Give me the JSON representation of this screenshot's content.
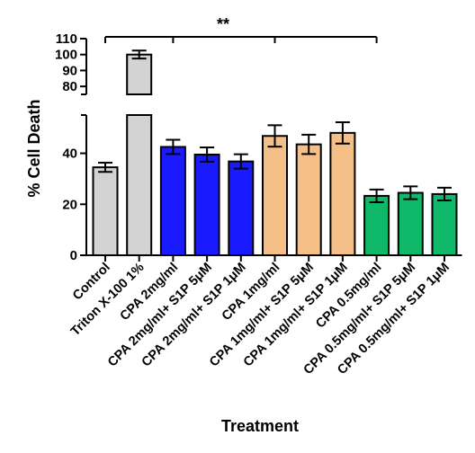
{
  "chart_data": {
    "type": "bar",
    "title": "",
    "xlabel": "Treatment",
    "ylabel": "% Cell Death",
    "ylim_lower": [
      0,
      55
    ],
    "ylim_upper": [
      75,
      110
    ],
    "y_axis_break": true,
    "yticks_lower": [
      "0",
      "20",
      "40"
    ],
    "yticks_upper": [
      "80",
      "90",
      "100",
      "110"
    ],
    "grid": false,
    "categories": [
      "Control",
      "Triton X-100 1%",
      "CPA 2mg/ml",
      "CPA 2mg/ml+ S1P 5μM",
      "CPA 2mg/ml+ S1P 1μM",
      "CPA 1mg/ml",
      "CPA 1mg/ml+ S1P 5μM",
      "CPA 1mg/ml+ S1P 1μM",
      "CPA 0.5mg/ml",
      "CPA 0.5mg/ml+ S1P 5μM",
      "CPA 0.5mg/ml+ S1P 1μM"
    ],
    "values": [
      34.5,
      100,
      42.5,
      39.5,
      36.8,
      46.8,
      43.5,
      48,
      23.3,
      24.5,
      24
    ],
    "errors": [
      1.8,
      2.5,
      2.8,
      2.8,
      2.8,
      4.2,
      3.8,
      4.2,
      2.5,
      2.5,
      2.5
    ],
    "colors": [
      "#d3d3d3",
      "#d3d3d3",
      "#1a1aff",
      "#1a1aff",
      "#1a1aff",
      "#f5bf88",
      "#f5bf88",
      "#f5bf88",
      "#10b86a",
      "#10b86a",
      "#10b86a"
    ],
    "significance": {
      "label": "**",
      "from_category": 0,
      "to_category": 8,
      "ticks_at": [
        0,
        2,
        5,
        8
      ]
    }
  }
}
